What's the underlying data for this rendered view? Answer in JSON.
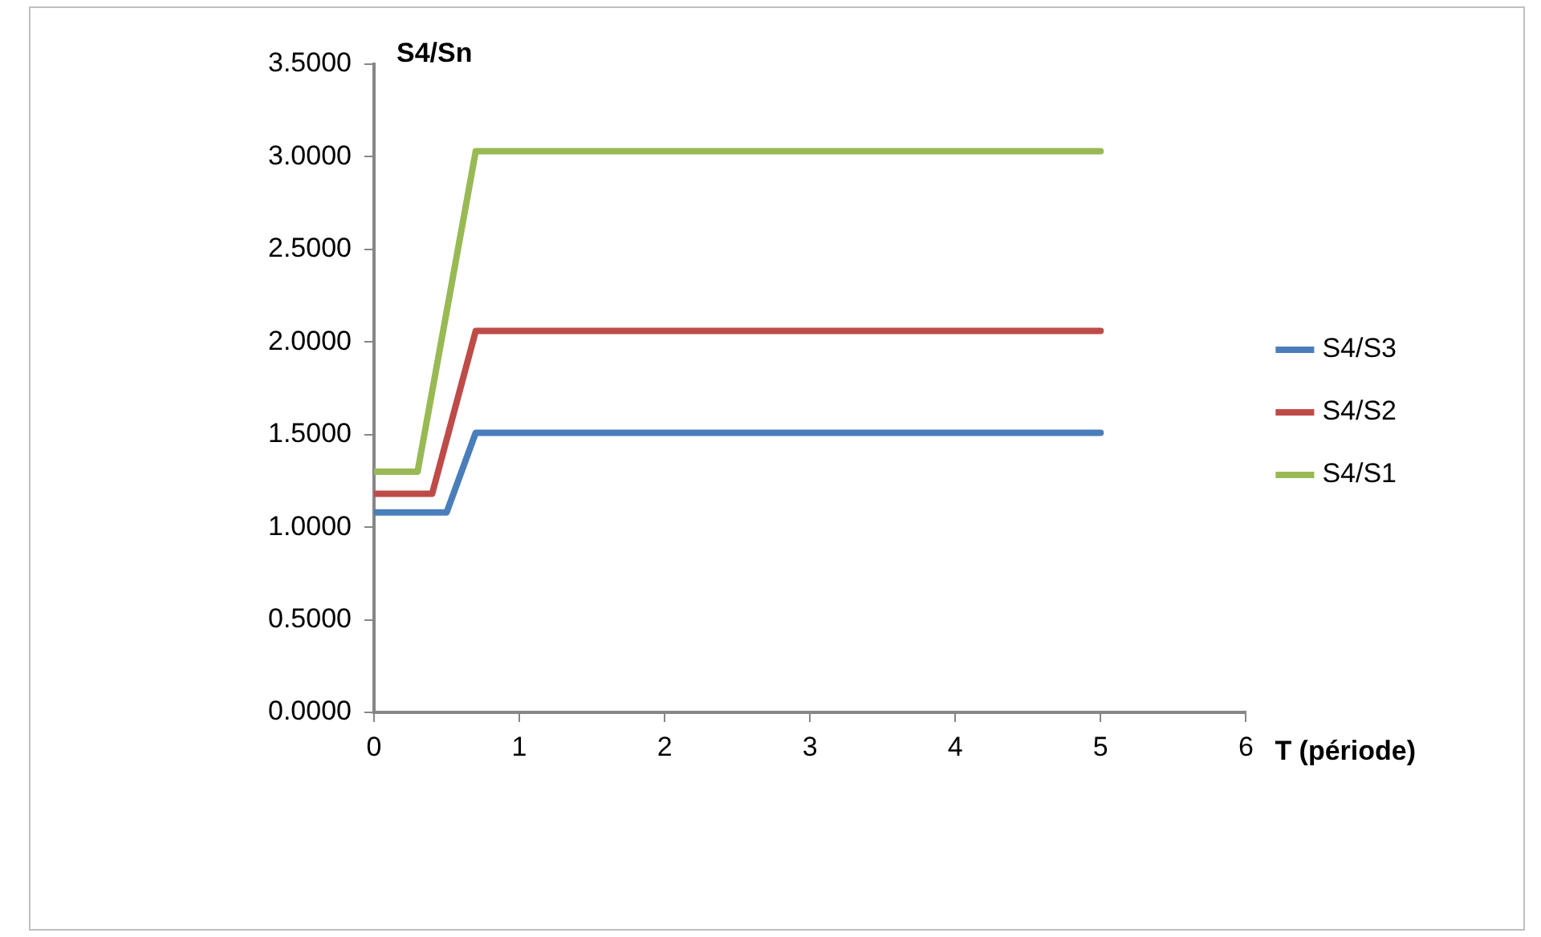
{
  "chart_data": {
    "type": "line",
    "xlabel": "T (période)",
    "ylabel": "S4/Sn",
    "xlim": [
      0,
      6
    ],
    "xticks": [
      0,
      1,
      2,
      3,
      4,
      5,
      6
    ],
    "ylim": [
      0,
      3.5
    ],
    "yticks": [
      {
        "value": 0,
        "label": "0.0000"
      },
      {
        "value": 0.5,
        "label": "0.5000"
      },
      {
        "value": 1,
        "label": "1.0000"
      },
      {
        "value": 1.5,
        "label": "1.5000"
      },
      {
        "value": 2,
        "label": "2.0000"
      },
      {
        "value": 2.5,
        "label": "2.5000"
      },
      {
        "value": 3,
        "label": "3.0000"
      },
      {
        "value": 3.5,
        "label": "3.5000"
      }
    ],
    "series": [
      {
        "name": "S4/S3",
        "color": "#4a7ebb",
        "x": [
          0,
          0.5,
          0.7,
          5
        ],
        "values": [
          1.08,
          1.08,
          1.51,
          1.51
        ]
      },
      {
        "name": "S4/S2",
        "color": "#be4b48",
        "x": [
          0,
          0.4,
          0.7,
          5
        ],
        "values": [
          1.18,
          1.18,
          2.06,
          2.06
        ]
      },
      {
        "name": "S4/S1",
        "color": "#98b954",
        "x": [
          0,
          0.3,
          0.7,
          5
        ],
        "values": [
          1.3,
          1.3,
          3.03,
          3.03
        ]
      }
    ],
    "grid": false,
    "legend": "right",
    "marker": "none",
    "line_style": "solid"
  }
}
